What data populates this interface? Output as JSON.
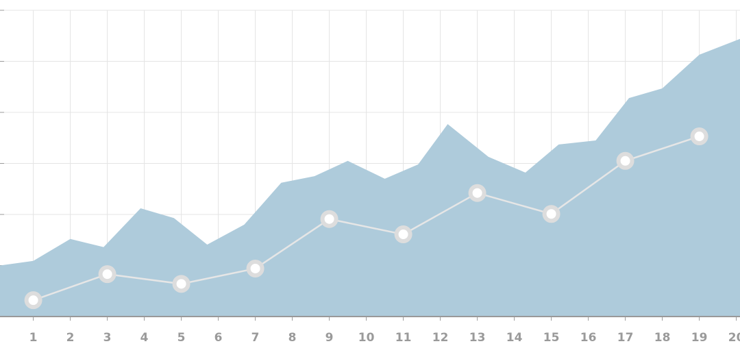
{
  "chart_data": {
    "type": "area",
    "xlim": [
      0.1,
      20.1
    ],
    "xticks": [
      1,
      2,
      3,
      4,
      5,
      6,
      7,
      8,
      9,
      10,
      11,
      12,
      13,
      14,
      15,
      16,
      17,
      18,
      19,
      20
    ],
    "ylim": [
      0,
      6
    ],
    "yticks": [
      0,
      1,
      2,
      3,
      4,
      5,
      6
    ],
    "grid": true,
    "series": [
      {
        "type": "area",
        "color": "#aecbdb",
        "x": [
          0.1,
          1,
          2,
          2.9,
          3.9,
          4.8,
          5.7,
          6.7,
          7.7,
          8.6,
          9.5,
          10.5,
          11.4,
          12.2,
          13.3,
          14.3,
          15.2,
          16.2,
          17.1,
          18,
          19,
          20.1
        ],
        "values": [
          1.0,
          1.09,
          1.52,
          1.36,
          2.12,
          1.93,
          1.41,
          1.8,
          2.62,
          2.75,
          3.05,
          2.7,
          2.98,
          3.77,
          3.13,
          2.82,
          3.37,
          3.45,
          4.28,
          4.47,
          5.13,
          5.44
        ]
      },
      {
        "type": "line",
        "color": "#e6e6e6",
        "x": [
          1,
          3,
          5,
          7,
          9,
          11,
          13,
          15,
          17,
          19
        ],
        "values": [
          0.32,
          0.83,
          0.64,
          0.94,
          1.91,
          1.61,
          2.42,
          2.01,
          3.05,
          3.53
        ]
      }
    ]
  }
}
